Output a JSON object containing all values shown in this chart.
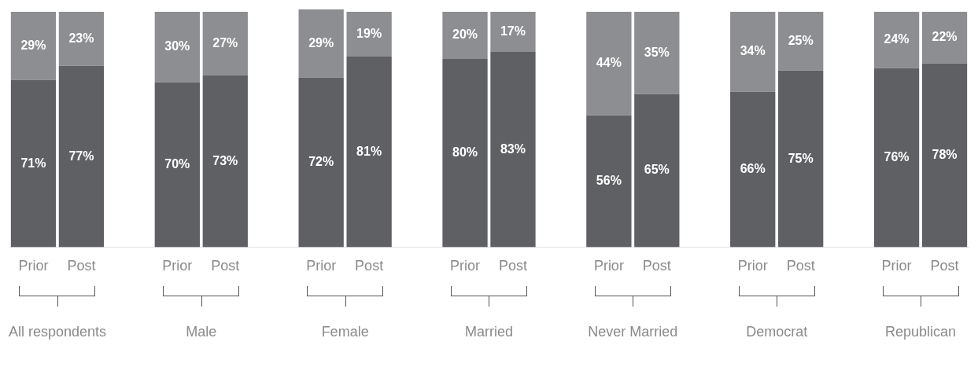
{
  "chart_data": {
    "type": "bar",
    "stacked": true,
    "categories": [
      "Prior",
      "Post",
      null,
      "Prior",
      "Post",
      null,
      "Prior",
      "Post",
      null,
      "Prior",
      "Post",
      null,
      "Prior",
      "Post",
      null,
      "Prior",
      "Post",
      null,
      "Prior",
      "Post"
    ],
    "series": [
      {
        "color": "#5f6064",
        "values": [
          71,
          77,
          null,
          70,
          73,
          null,
          72,
          81,
          null,
          80,
          83,
          null,
          56,
          65,
          null,
          66,
          75,
          null,
          76,
          78
        ],
        "value_labels": [
          "71%",
          "77%",
          null,
          "70%",
          "73%",
          null,
          "72%",
          "81%",
          null,
          "80%",
          "83%",
          null,
          "56%",
          "65%",
          null,
          "66%",
          "75%",
          null,
          "76%",
          "78%"
        ]
      },
      {
        "color": "#8d8e91",
        "values": [
          29,
          23,
          null,
          30,
          27,
          null,
          29,
          19,
          null,
          20,
          17,
          null,
          44,
          35,
          null,
          34,
          25,
          null,
          24,
          22
        ],
        "value_labels": [
          "29%",
          "23%",
          null,
          "30%",
          "27%",
          null,
          "29%",
          "19%",
          null,
          "20%",
          "17%",
          null,
          "44%",
          "35%",
          null,
          "34%",
          "25%",
          null,
          "24%",
          "22%"
        ]
      }
    ],
    "ylim": [
      0,
      101
    ],
    "tick_labels": "x",
    "grid": false,
    "legend": false,
    "annotations": [
      "All respondents",
      "Male",
      "Female",
      "Married",
      "Never Married",
      "Democrat",
      "Republican"
    ]
  }
}
